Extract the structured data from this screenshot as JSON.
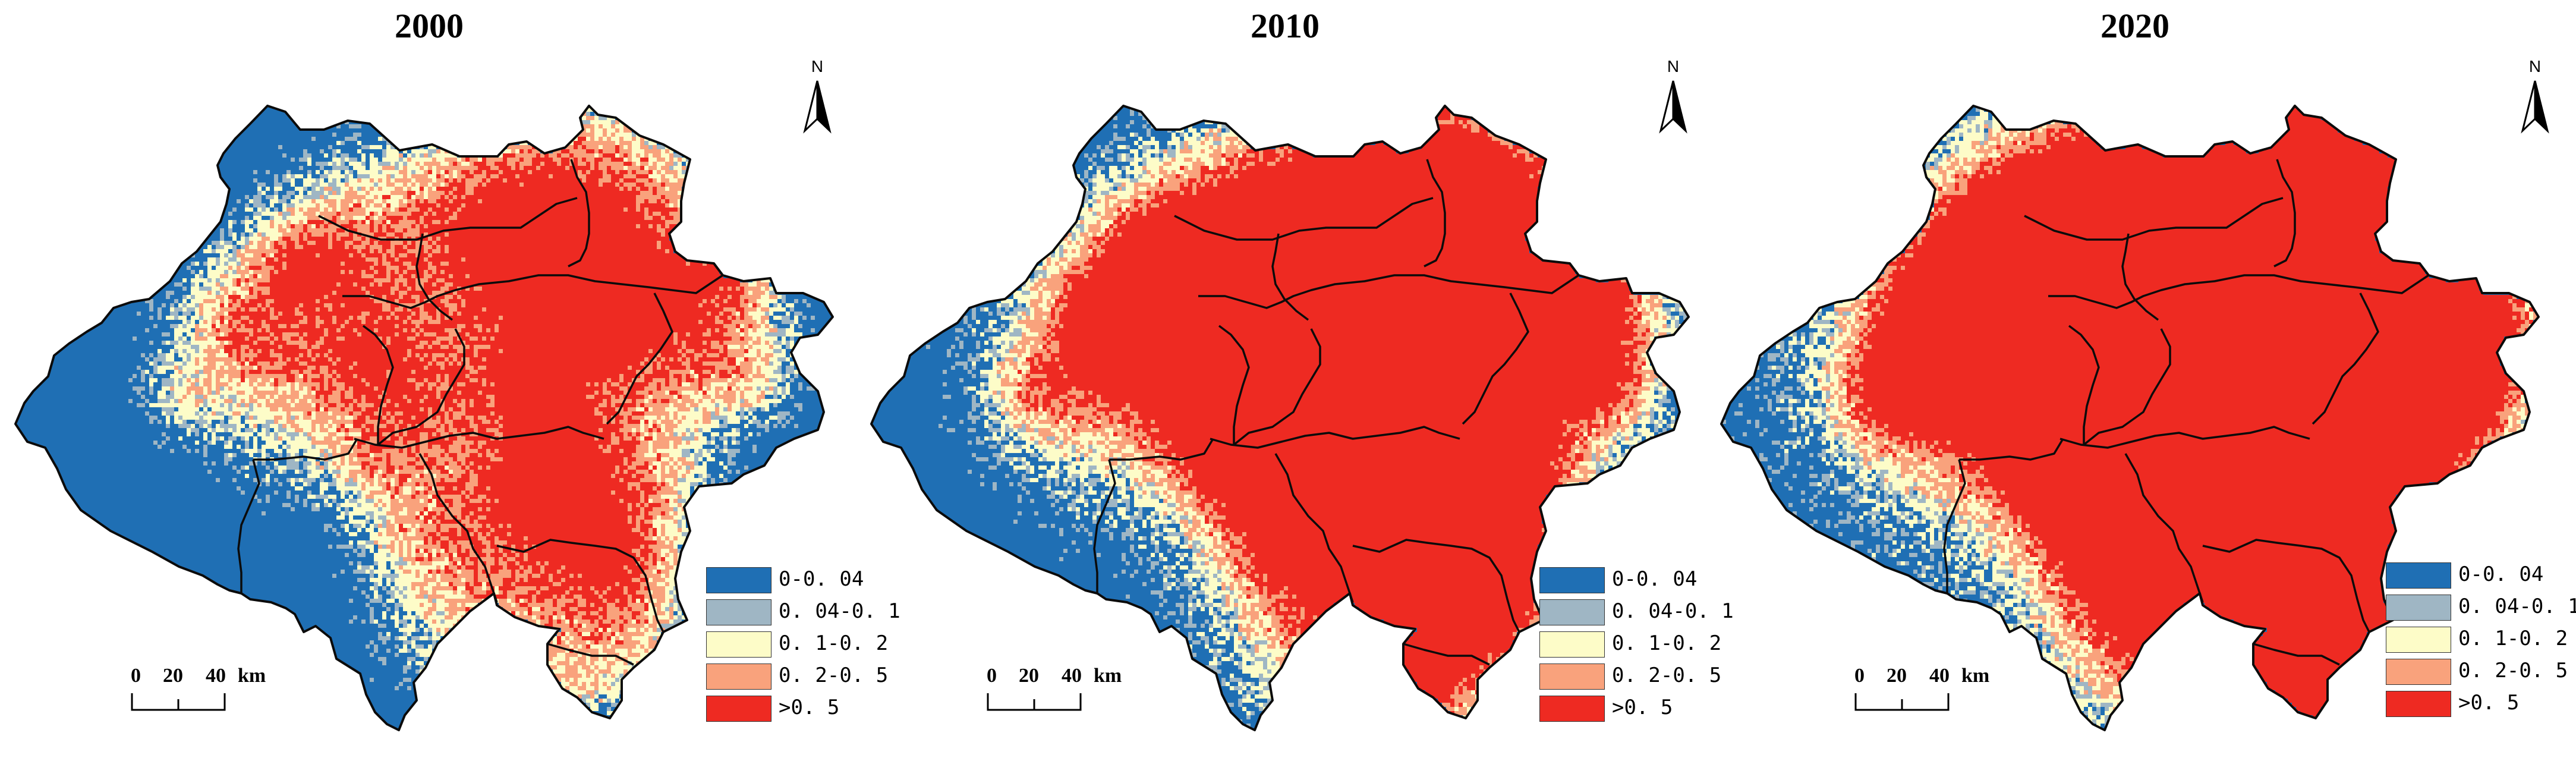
{
  "figure": {
    "panels": [
      {
        "title": "2000"
      },
      {
        "title": "2010"
      },
      {
        "title": "2020"
      }
    ],
    "north_label": "N",
    "scale": {
      "ticks": [
        "0",
        "20",
        "40"
      ],
      "unit": "km"
    },
    "legend": [
      {
        "label": "0-0. 04",
        "color": "#1f6fb4"
      },
      {
        "label": "0. 04-0. 1",
        "color": "#9fb6c4"
      },
      {
        "label": "0. 1-0. 2",
        "color": "#fdfcc8"
      },
      {
        "label": "0. 2-0. 5",
        "color": "#f9a27c"
      },
      {
        "label": ">0. 5",
        "color": "#ee2a22"
      }
    ],
    "colors": {
      "base": "#1f6fb4",
      "boundary": "#0b0b0b"
    }
  }
}
